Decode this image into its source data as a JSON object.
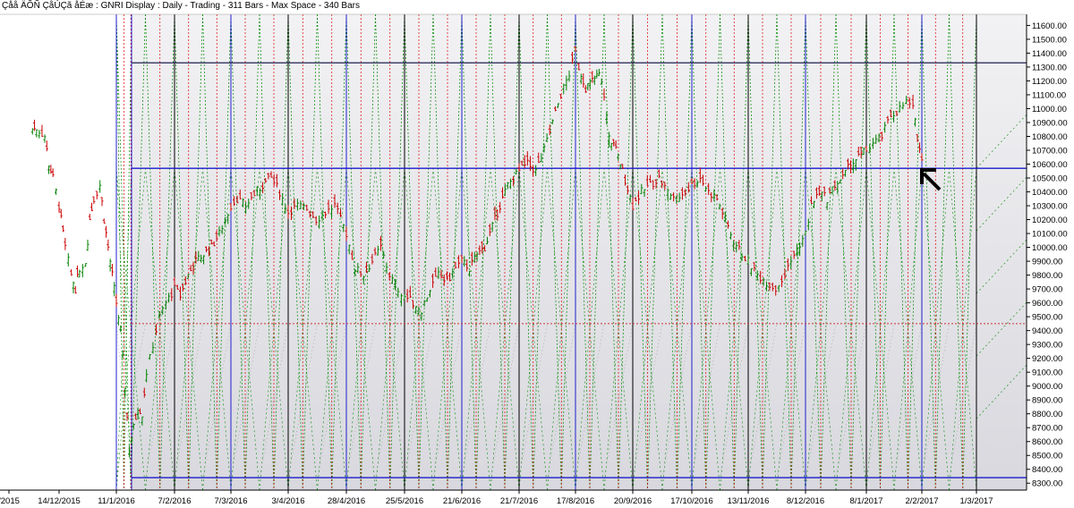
{
  "chart_data": {
    "type": "line",
    "title": "Çåå ÄÕÑ ÇåÚÇã åÉæ : GNRI Display :  Daily  - Trading - 311 Bars  - Max Space - 340 Bars",
    "xlabel": "",
    "ylabel": "",
    "ylim": [
      8250,
      11680
    ],
    "y_ticks": [
      "11600.00",
      "11500.00",
      "11400.00",
      "11300.00",
      "11200.00",
      "11100.00",
      "11000.00",
      "10900.00",
      "10800.00",
      "10700.00",
      "10600.00",
      "10500.00",
      "10400.00",
      "10300.00",
      "10200.00",
      "10100.00",
      "10000.00",
      "9900.00",
      "9800.00",
      "9700.00",
      "9600.00",
      "9500.00",
      "9400.00",
      "9300.00",
      "9200.00",
      "9100.00",
      "9000.00",
      "8900.00",
      "8800.00",
      "8700.00",
      "8600.00",
      "8500.00",
      "8400.00",
      "8300.00"
    ],
    "x_ticks": [
      "/2015",
      "14/12/2015",
      "11/1/2016",
      "7/2/2016",
      "7/3/2016",
      "3/4/2016",
      "28/4/2016",
      "25/5/2016",
      "21/6/2016",
      "21/7/2016",
      "17/8/2016",
      "20/9/2016",
      "17/10/2016",
      "13/11/2016",
      "8/12/2016",
      "8/1/2017",
      "2/2/2017",
      "1/3/2017"
    ],
    "horizontal_levels": [
      {
        "value": 11330,
        "color": "#202050"
      },
      {
        "value": 10570,
        "color": "#1a1acc"
      },
      {
        "value": 9450,
        "color": "#cc3333"
      },
      {
        "value": 8340,
        "color": "#1a1acc"
      }
    ],
    "vertical_cycle_dates": [
      "11/1/2016",
      "7/2/2016",
      "7/3/2016",
      "3/4/2016",
      "28/4/2016",
      "25/5/2016",
      "21/6/2016",
      "21/7/2016",
      "17/8/2016",
      "20/9/2016",
      "17/10/2016",
      "13/11/2016",
      "8/12/2016",
      "8/1/2017",
      "2/2/2017",
      "1/3/2017"
    ],
    "colors": {
      "up_bar": "#008000",
      "down_bar": "#cc0000",
      "grid_blue": "#2020cc",
      "grid_black": "#000000",
      "fan_green": "#008800",
      "fan_red": "#dd0000",
      "fan_grey": "#888888",
      "panel_bg": "#e6e6ea"
    },
    "series": [
      {
        "close_points": [
          [
            "1/12/2015",
            10850
          ],
          [
            "3/12/2015",
            10860
          ],
          [
            "7/12/2015",
            10800
          ],
          [
            "9/12/2015",
            10600
          ],
          [
            "11/12/2015",
            10500
          ],
          [
            "14/12/2015",
            10300
          ],
          [
            "15/12/2015",
            10200
          ],
          [
            "17/12/2015",
            10000
          ],
          [
            "20/12/2015",
            9800
          ],
          [
            "22/12/2015",
            9700
          ],
          [
            "24/12/2015",
            9850
          ],
          [
            "27/12/2015",
            9900
          ],
          [
            "29/12/2015",
            10200
          ],
          [
            "31/12/2015",
            10350
          ],
          [
            "3/1/2016",
            10450
          ],
          [
            "5/1/2016",
            10200
          ],
          [
            "7/1/2016",
            10000
          ],
          [
            "9/1/2016",
            9800
          ],
          [
            "11/1/2016",
            9600
          ],
          [
            "13/1/2016",
            9400
          ],
          [
            "15/1/2016",
            9000
          ],
          [
            "17/1/2016",
            8550
          ],
          [
            "19/1/2016",
            8700
          ],
          [
            "21/1/2016",
            8850
          ],
          [
            "23/1/2016",
            8800
          ],
          [
            "25/1/2016",
            9100
          ],
          [
            "28/1/2016",
            9300
          ],
          [
            "31/1/2016",
            9500
          ],
          [
            "3/2/2016",
            9600
          ],
          [
            "7/2/2016",
            9700
          ],
          [
            "10/2/2016",
            9650
          ],
          [
            "14/2/2016",
            9800
          ],
          [
            "18/2/2016",
            9900
          ],
          [
            "22/2/2016",
            9950
          ],
          [
            "26/2/2016",
            10000
          ],
          [
            "1/3/2016",
            10100
          ],
          [
            "7/3/2016",
            10300
          ],
          [
            "10/3/2016",
            10350
          ],
          [
            "14/3/2016",
            10300
          ],
          [
            "18/3/2016",
            10380
          ],
          [
            "22/3/2016",
            10450
          ],
          [
            "26/3/2016",
            10500
          ],
          [
            "30/3/2016",
            10400
          ],
          [
            "3/4/2016",
            10250
          ],
          [
            "7/4/2016",
            10300
          ],
          [
            "11/4/2016",
            10280
          ],
          [
            "15/4/2016",
            10200
          ],
          [
            "19/4/2016",
            10250
          ],
          [
            "23/4/2016",
            10300
          ],
          [
            "28/4/2016",
            10100
          ],
          [
            "2/5/2016",
            9850
          ],
          [
            "6/5/2016",
            9800
          ],
          [
            "10/5/2016",
            9900
          ],
          [
            "14/5/2016",
            10000
          ],
          [
            "18/5/2016",
            9800
          ],
          [
            "22/5/2016",
            9700
          ],
          [
            "25/5/2016",
            9650
          ],
          [
            "29/5/2016",
            9600
          ],
          [
            "2/6/2016",
            9550
          ],
          [
            "6/6/2016",
            9700
          ],
          [
            "10/6/2016",
            9800
          ],
          [
            "14/6/2016",
            9750
          ],
          [
            "18/6/2016",
            9850
          ],
          [
            "21/6/2016",
            9900
          ],
          [
            "25/6/2016",
            9850
          ],
          [
            "29/6/2016",
            9950
          ],
          [
            "3/7/2016",
            10000
          ],
          [
            "7/7/2016",
            10150
          ],
          [
            "11/7/2016",
            10300
          ],
          [
            "15/7/2016",
            10450
          ],
          [
            "21/7/2016",
            10550
          ],
          [
            "25/7/2016",
            10600
          ],
          [
            "29/7/2016",
            10550
          ],
          [
            "2/8/2016",
            10700
          ],
          [
            "6/8/2016",
            10900
          ],
          [
            "10/8/2016",
            11100
          ],
          [
            "14/8/2016",
            11250
          ],
          [
            "17/8/2016",
            11400
          ],
          [
            "19/8/2016",
            11300
          ],
          [
            "23/8/2016",
            11150
          ],
          [
            "27/8/2016",
            11200
          ],
          [
            "31/8/2016",
            11250
          ],
          [
            "3/9/2016",
            11100
          ],
          [
            "6/9/2016",
            10800
          ],
          [
            "10/9/2016",
            10700
          ],
          [
            "14/9/2016",
            10550
          ],
          [
            "20/9/2016",
            10300
          ],
          [
            "24/9/2016",
            10400
          ],
          [
            "28/9/2016",
            10450
          ],
          [
            "2/10/2016",
            10500
          ],
          [
            "6/10/2016",
            10400
          ],
          [
            "10/10/2016",
            10350
          ],
          [
            "14/10/2016",
            10400
          ],
          [
            "17/10/2016",
            10450
          ],
          [
            "21/10/2016",
            10500
          ],
          [
            "25/10/2016",
            10400
          ],
          [
            "29/10/2016",
            10350
          ],
          [
            "2/11/2016",
            10200
          ],
          [
            "6/11/2016",
            10050
          ],
          [
            "10/11/2016",
            9950
          ],
          [
            "13/11/2016",
            9900
          ],
          [
            "17/11/2016",
            9800
          ],
          [
            "21/11/2016",
            9750
          ],
          [
            "25/11/2016",
            9700
          ],
          [
            "29/11/2016",
            9800
          ],
          [
            "3/12/2016",
            9950
          ],
          [
            "8/12/2016",
            10100
          ],
          [
            "11/12/2016",
            10300
          ],
          [
            "15/12/2016",
            10400
          ],
          [
            "19/12/2016",
            10350
          ],
          [
            "23/12/2016",
            10450
          ],
          [
            "27/12/2016",
            10500
          ],
          [
            "31/12/2016",
            10600
          ],
          [
            "4/1/2017",
            10650
          ],
          [
            "8/1/2017",
            10700
          ],
          [
            "11/1/2017",
            10750
          ],
          [
            "15/1/2017",
            10800
          ],
          [
            "19/1/2017",
            10950
          ],
          [
            "23/1/2017",
            11000
          ],
          [
            "26/1/2017",
            11050
          ],
          [
            "29/1/2017",
            11000
          ],
          [
            "31/1/2017",
            10800
          ],
          [
            "2/2/2017",
            10620
          ]
        ]
      }
    ]
  }
}
